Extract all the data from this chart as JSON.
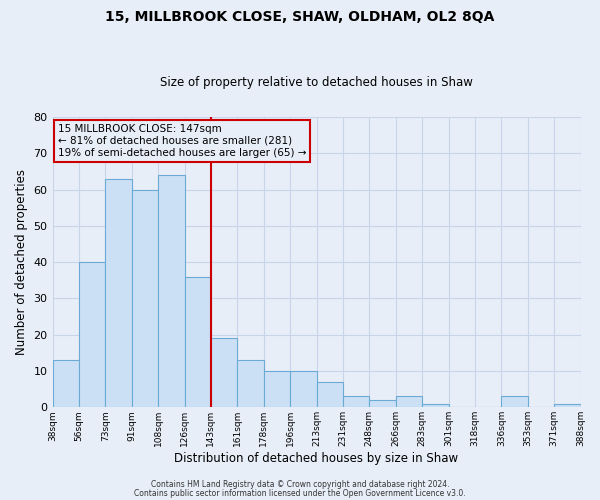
{
  "title": "15, MILLBROOK CLOSE, SHAW, OLDHAM, OL2 8QA",
  "subtitle": "Size of property relative to detached houses in Shaw",
  "xlabel": "Distribution of detached houses by size in Shaw",
  "ylabel": "Number of detached properties",
  "bar_values": [
    13,
    40,
    63,
    60,
    64,
    36,
    19,
    13,
    10,
    10,
    7,
    3,
    2,
    3,
    1,
    0,
    0,
    3,
    0,
    1
  ],
  "categories": [
    "38sqm",
    "56sqm",
    "73sqm",
    "91sqm",
    "108sqm",
    "126sqm",
    "143sqm",
    "161sqm",
    "178sqm",
    "196sqm",
    "213sqm",
    "231sqm",
    "248sqm",
    "266sqm",
    "283sqm",
    "301sqm",
    "318sqm",
    "336sqm",
    "353sqm",
    "371sqm",
    "388sqm"
  ],
  "bar_color": "#cce0f5",
  "bar_edge_color": "#6aaad4",
  "vline_color": "#cc0000",
  "annotation_lines": [
    "15 MILLBROOK CLOSE: 147sqm",
    "← 81% of detached houses are smaller (281)",
    "19% of semi-detached houses are larger (65) →"
  ],
  "ylim": [
    0,
    80
  ],
  "yticks": [
    0,
    10,
    20,
    30,
    40,
    50,
    60,
    70,
    80
  ],
  "grid_color": "#c8d4e8",
  "bg_color": "#e8eef8",
  "footer1": "Contains HM Land Registry data © Crown copyright and database right 2024.",
  "footer2": "Contains public sector information licensed under the Open Government Licence v3.0."
}
